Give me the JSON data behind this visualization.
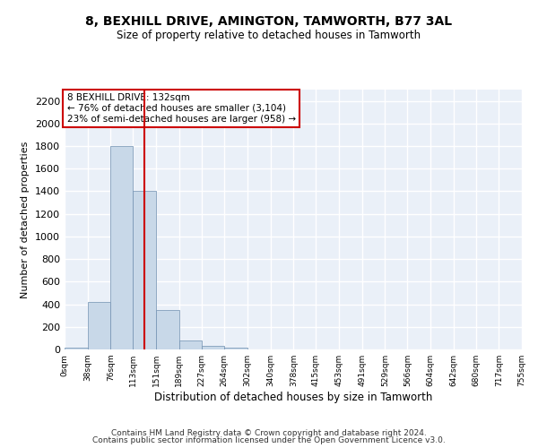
{
  "title1": "8, BEXHILL DRIVE, AMINGTON, TAMWORTH, B77 3AL",
  "title2": "Size of property relative to detached houses in Tamworth",
  "xlabel": "Distribution of detached houses by size in Tamworth",
  "ylabel": "Number of detached properties",
  "annotation_line1": "8 BEXHILL DRIVE: 132sqm",
  "annotation_line2": "← 76% of detached houses are smaller (3,104)",
  "annotation_line3": "23% of semi-detached houses are larger (958) →",
  "bar_edges": [
    0,
    38,
    76,
    113,
    151,
    189,
    227,
    264,
    302,
    340,
    378,
    415,
    453,
    491,
    529,
    566,
    604,
    642,
    680,
    717,
    755
  ],
  "bar_heights": [
    15,
    420,
    1800,
    1400,
    350,
    80,
    30,
    15,
    0,
    0,
    0,
    0,
    0,
    0,
    0,
    0,
    0,
    0,
    0,
    0
  ],
  "bar_color": "#c8d8e8",
  "bar_edgecolor": "#7090b0",
  "vline_x": 132,
  "vline_color": "#cc0000",
  "ylim": [
    0,
    2300
  ],
  "yticks": [
    0,
    200,
    400,
    600,
    800,
    1000,
    1200,
    1400,
    1600,
    1800,
    2000,
    2200
  ],
  "bg_color": "#eaf0f8",
  "grid_color": "#ffffff",
  "tick_labels": [
    "0sqm",
    "38sqm",
    "76sqm",
    "113sqm",
    "151sqm",
    "189sqm",
    "227sqm",
    "264sqm",
    "302sqm",
    "340sqm",
    "378sqm",
    "415sqm",
    "453sqm",
    "491sqm",
    "529sqm",
    "566sqm",
    "604sqm",
    "642sqm",
    "680sqm",
    "717sqm",
    "755sqm"
  ],
  "footer1": "Contains HM Land Registry data © Crown copyright and database right 2024.",
  "footer2": "Contains public sector information licensed under the Open Government Licence v3.0."
}
